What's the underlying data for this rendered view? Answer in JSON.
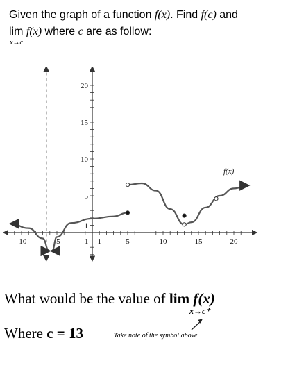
{
  "prompt": {
    "line1_text": "Given the graph of a function ",
    "fx": "f(x)",
    "line1_mid": ". Find ",
    "fc": "f(c)",
    "line1_end": " and",
    "lim_word": "lim",
    "lim_func": "f(x)",
    "line2_end": " where ",
    "c_var": "c",
    "line2_tail": " are as follow:",
    "lim_sub": "x→c"
  },
  "chart_data": {
    "type": "line",
    "title": "",
    "curve_label": "f(x)",
    "x_ticks": [
      "-10",
      "-5",
      "-1",
      "1",
      "5",
      "10",
      "15",
      "20"
    ],
    "y_ticks": [
      "1",
      "5",
      "10",
      "15",
      "20"
    ],
    "xlim": [
      -12,
      22
    ],
    "ylim": [
      -3,
      22
    ],
    "vertical_asymptote": -3,
    "segments": [
      {
        "name": "left",
        "points": [
          [
            -11.5,
            1.2
          ],
          [
            -9,
            0.6
          ],
          [
            -7,
            -0.8
          ],
          [
            -6.1,
            -2.5
          ]
        ]
      },
      {
        "name": "middle",
        "points": [
          [
            -5.7,
            -2.5
          ],
          [
            -5,
            -0.6
          ],
          [
            -3,
            1.3
          ],
          [
            0,
            1.9
          ],
          [
            3,
            2.2
          ],
          [
            5,
            2.7
          ]
        ]
      },
      {
        "name": "right",
        "points": [
          [
            5,
            6.5
          ],
          [
            7,
            6.7
          ],
          [
            9,
            5.7
          ],
          [
            11,
            3.2
          ],
          [
            13,
            1.1
          ],
          [
            14,
            1.4
          ],
          [
            16,
            3.4
          ],
          [
            18,
            5.0
          ],
          [
            20,
            6.0
          ],
          [
            22,
            6.4
          ]
        ]
      }
    ],
    "markers": [
      {
        "x": 5,
        "y": 2.7,
        "filled": true
      },
      {
        "x": 5,
        "y": 6.5,
        "filled": false
      },
      {
        "x": 13,
        "y": 1.1,
        "filled": false
      },
      {
        "x": 13,
        "y": 2.3,
        "filled": true
      },
      {
        "x": 17.5,
        "y": 4.6,
        "filled": false
      }
    ],
    "grid": false
  },
  "question": {
    "text": "What would be the value of ",
    "lim_word": "lim",
    "func": "f(x)",
    "sub": "x→c⁺",
    "where_label": "Where ",
    "c_equals": "c = 13",
    "note": "Take note of the symbol above"
  }
}
